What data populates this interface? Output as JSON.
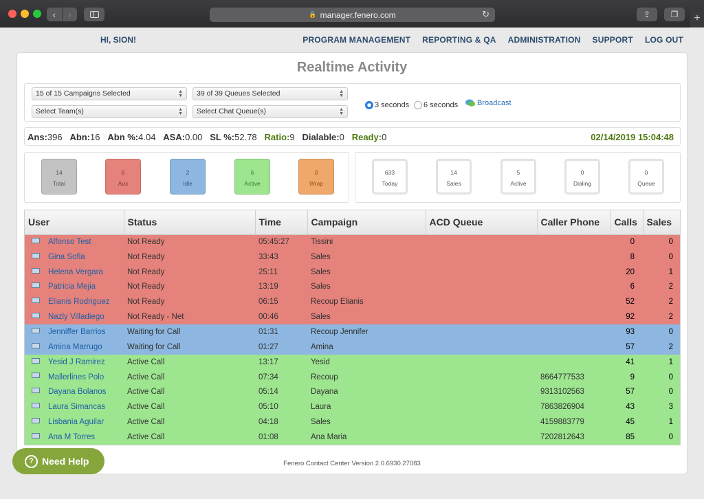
{
  "browser": {
    "url": "manager.fenero.com",
    "back": "‹",
    "forward": "›",
    "reload": "↻",
    "share": "⇪",
    "tabs": "❐",
    "new_tab": "+"
  },
  "header": {
    "greeting": "HI, SION!",
    "nav": [
      "PROGRAM MANAGEMENT",
      "REPORTING & QA",
      "ADMINISTRATION",
      "SUPPORT",
      "LOG OUT"
    ]
  },
  "page": {
    "title": "Realtime Activity"
  },
  "filters": {
    "campaigns": "15 of 15 Campaigns Selected",
    "queues": "39 of 39 Queues Selected",
    "teams": "Select Team(s)",
    "chat_queues": "Select Chat Queue(s)",
    "refresh_options": [
      "3 seconds",
      "6 seconds"
    ],
    "refresh_selected": "3 seconds",
    "broadcast": "Broadcast"
  },
  "stats": {
    "ans_label": "Ans:",
    "ans": "396",
    "abn_label": "Abn:",
    "abn": "16",
    "abn_pct_label": "Abn %:",
    "abn_pct": "4.04",
    "asa_label": "ASA:",
    "asa": "0.00",
    "sl_label": "SL %:",
    "sl": "52.78",
    "ratio_label": "Ratio:",
    "ratio": "9",
    "dialable_label": "Dialable:",
    "dialable": "0",
    "ready_label": "Ready:",
    "ready": "0",
    "datetime": "02/14/2019 15:04:48"
  },
  "agent_tiles": [
    {
      "value": "14",
      "label": "Total"
    },
    {
      "value": "6",
      "label": "Aux"
    },
    {
      "value": "2",
      "label": "Idle"
    },
    {
      "value": "6",
      "label": "Active"
    },
    {
      "value": "0",
      "label": "Wrap"
    }
  ],
  "call_tiles": [
    {
      "value": "633",
      "label": "Today"
    },
    {
      "value": "14",
      "label": "Sales"
    },
    {
      "value": "5",
      "label": "Active"
    },
    {
      "value": "0",
      "label": "Dialing"
    },
    {
      "value": "0",
      "label": "Queue"
    }
  ],
  "table": {
    "columns": [
      "User",
      "Status",
      "Time",
      "Campaign",
      "ACD Queue",
      "Caller Phone",
      "Calls",
      "Sales"
    ],
    "rows": [
      {
        "user": "Alfonso Test",
        "status": "Not Ready",
        "time": "05:45:27",
        "campaign": "Tissini",
        "queue": "",
        "phone": "",
        "calls": "0",
        "sales": "0",
        "color": "red"
      },
      {
        "user": "Gina Sofia",
        "status": "Not Ready",
        "time": "33:43",
        "campaign": "Sales",
        "queue": "",
        "phone": "",
        "calls": "8",
        "sales": "0",
        "color": "red"
      },
      {
        "user": "Helena Vergara",
        "status": "Not Ready",
        "time": "25:11",
        "campaign": "Sales",
        "queue": "",
        "phone": "",
        "calls": "20",
        "sales": "1",
        "color": "red"
      },
      {
        "user": "Patricia Mejia",
        "status": "Not Ready",
        "time": "13:19",
        "campaign": "Sales",
        "queue": "",
        "phone": "",
        "calls": "6",
        "sales": "2",
        "color": "red"
      },
      {
        "user": "Elianis Rodriguez",
        "status": "Not Ready",
        "time": "06:15",
        "campaign": "Recoup Elianis",
        "queue": "",
        "phone": "",
        "calls": "52",
        "sales": "2",
        "color": "red"
      },
      {
        "user": "Nazly Villadiego",
        "status": "Not Ready - Net",
        "time": "00:46",
        "campaign": "Sales",
        "queue": "",
        "phone": "",
        "calls": "92",
        "sales": "2",
        "color": "red"
      },
      {
        "user": "Jenniffer Barrios",
        "status": "Waiting for Call",
        "time": "01:31",
        "campaign": "Recoup Jennifer",
        "queue": "",
        "phone": "",
        "calls": "93",
        "sales": "0",
        "color": "blue"
      },
      {
        "user": "Amina Marrugo",
        "status": "Waiting for Call",
        "time": "01:27",
        "campaign": "Amina",
        "queue": "",
        "phone": "",
        "calls": "57",
        "sales": "2",
        "color": "blue"
      },
      {
        "user": "Yesid J Ramirez",
        "status": "Active Call",
        "time": "13:17",
        "campaign": "Yesid",
        "queue": "",
        "phone": "",
        "calls": "41",
        "sales": "1",
        "color": "green"
      },
      {
        "user": "Mallerlines Polo",
        "status": "Active Call",
        "time": "07:34",
        "campaign": "Recoup",
        "queue": "",
        "phone": "8664777533",
        "calls": "9",
        "sales": "0",
        "color": "green"
      },
      {
        "user": "Dayana Bolanos",
        "status": "Active Call",
        "time": "05:14",
        "campaign": "Dayana",
        "queue": "",
        "phone": "9313102563",
        "calls": "57",
        "sales": "0",
        "color": "green"
      },
      {
        "user": "Laura Simancas",
        "status": "Active Call",
        "time": "05:10",
        "campaign": "Laura",
        "queue": "",
        "phone": "7863826904",
        "calls": "43",
        "sales": "3",
        "color": "green"
      },
      {
        "user": "Lisbania Aguilar",
        "status": "Active Call",
        "time": "04:18",
        "campaign": "Sales",
        "queue": "",
        "phone": "4159883779",
        "calls": "45",
        "sales": "1",
        "color": "green"
      },
      {
        "user": "Ana M Torres",
        "status": "Active Call",
        "time": "01:08",
        "campaign": "Ana Maria",
        "queue": "",
        "phone": "7202812643",
        "calls": "85",
        "sales": "0",
        "color": "green"
      }
    ]
  },
  "footer": "Fenero Contact Center Version 2.0.6930.27083",
  "help_button": "Need Help",
  "colors": {
    "not_ready": "#e5827c",
    "waiting": "#8db7e0",
    "active_call": "#9de58f",
    "accent_green": "#4d7a12",
    "link_blue": "#1f5fa8"
  }
}
